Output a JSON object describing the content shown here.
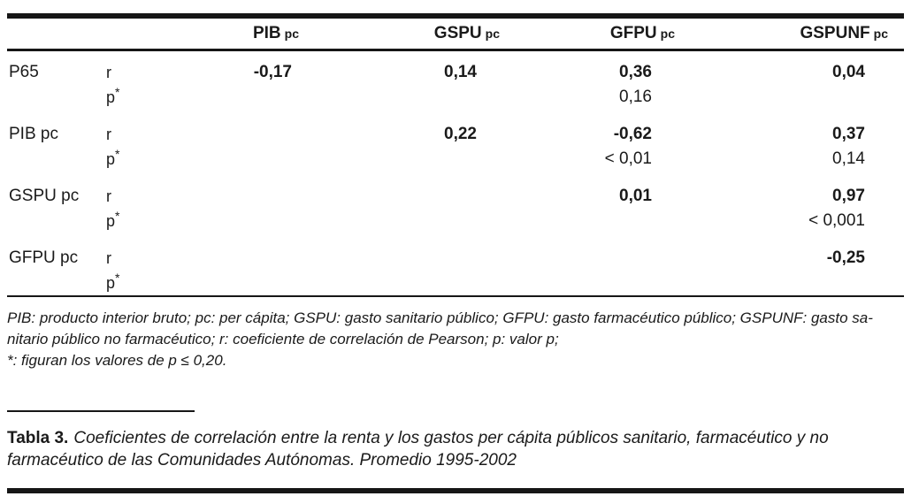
{
  "page": {
    "background": "#ffffff",
    "text_color": "#1a1a1a",
    "rule_color": "#161616"
  },
  "table": {
    "column_headers": [
      {
        "name": "PIB",
        "unit": "pc"
      },
      {
        "name": "GSPU",
        "unit": "pc"
      },
      {
        "name": "GFPU",
        "unit": "pc"
      },
      {
        "name": "GSPUNF",
        "unit": "pc"
      }
    ],
    "stat_labels": {
      "r": "r",
      "p": "p",
      "p_superscript": "*"
    },
    "groups": [
      {
        "label": "P65",
        "r_values": [
          "-0,17",
          "0,14",
          "0,36",
          "0,04"
        ],
        "p_values": [
          "",
          "",
          "0,16",
          ""
        ]
      },
      {
        "label": "PIB pc",
        "r_values": [
          "",
          "0,22",
          "-0,62",
          "0,37"
        ],
        "p_values": [
          "",
          "",
          "< 0,01",
          "0,14"
        ]
      },
      {
        "label": "GSPU pc",
        "r_values": [
          "",
          "",
          "0,01",
          "0,97"
        ],
        "p_values": [
          "",
          "",
          "",
          "< 0,001"
        ]
      },
      {
        "label": "GFPU pc",
        "r_values": [
          "",
          "",
          "",
          "-0,25"
        ],
        "p_values": [
          "",
          "",
          "",
          ""
        ]
      }
    ]
  },
  "footnotes": {
    "lines": [
      "PIB: producto interior bruto; pc: per cápita; GSPU: gasto sanitario público; GFPU: gasto farmacéutico público; GSPUNF: gasto sa-",
      "nitario público no farmacéutico; r: coeficiente de correlación de Pearson; p: valor p;",
      "*: figuran los valores de p ≤ 0,20."
    ]
  },
  "caption": {
    "label": "Tabla 3.",
    "text": "Coeficientes de correlación entre la renta y los gastos per cápita públicos sanitario, farmacéutico y no farmacéutico de las Comunidades Autónomas. Promedio 1995-2002"
  }
}
